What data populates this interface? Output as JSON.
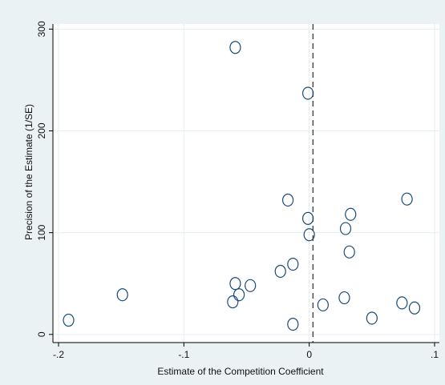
{
  "chart_data": {
    "type": "scatter",
    "xlabel": "Estimate of the Competition Coefficient",
    "ylabel": "Precision of the Estimate (1/SE)",
    "xlim": [
      -0.2,
      0.1
    ],
    "ylim": [
      -8,
      305
    ],
    "x_ticks": [
      -0.2,
      -0.1,
      0,
      0.1
    ],
    "x_tick_labels": [
      "-.2",
      "-.1",
      "0",
      ".1"
    ],
    "y_ticks": [
      0,
      100,
      200,
      300
    ],
    "y_tick_labels": [
      "0",
      "100",
      "200",
      "300"
    ],
    "grid": "horizontal",
    "reference_line": {
      "axis": "x",
      "value": 0.003,
      "style": "dashed"
    },
    "points": [
      {
        "x": -0.192,
        "y": 14
      },
      {
        "x": -0.149,
        "y": 39
      },
      {
        "x": -0.061,
        "y": 32
      },
      {
        "x": -0.059,
        "y": 50
      },
      {
        "x": -0.056,
        "y": 39
      },
      {
        "x": -0.047,
        "y": 48
      },
      {
        "x": -0.023,
        "y": 62
      },
      {
        "x": -0.013,
        "y": 69
      },
      {
        "x": -0.013,
        "y": 10
      },
      {
        "x": -0.059,
        "y": 282
      },
      {
        "x": -0.001,
        "y": 237
      },
      {
        "x": -0.017,
        "y": 132
      },
      {
        "x": -0.001,
        "y": 114
      },
      {
        "x": 0.0,
        "y": 98
      },
      {
        "x": 0.011,
        "y": 29
      },
      {
        "x": 0.028,
        "y": 36
      },
      {
        "x": 0.029,
        "y": 104
      },
      {
        "x": 0.033,
        "y": 118
      },
      {
        "x": 0.032,
        "y": 81
      },
      {
        "x": 0.05,
        "y": 16
      },
      {
        "x": 0.074,
        "y": 31
      },
      {
        "x": 0.078,
        "y": 133
      },
      {
        "x": 0.084,
        "y": 26
      }
    ],
    "colors": {
      "background": "#eaf2f3",
      "plot_area": "#ffffff",
      "marker_stroke": "#1a4a7a",
      "grid": "#e6eeef",
      "reference_line": "#444444",
      "axis": "#000000"
    }
  }
}
